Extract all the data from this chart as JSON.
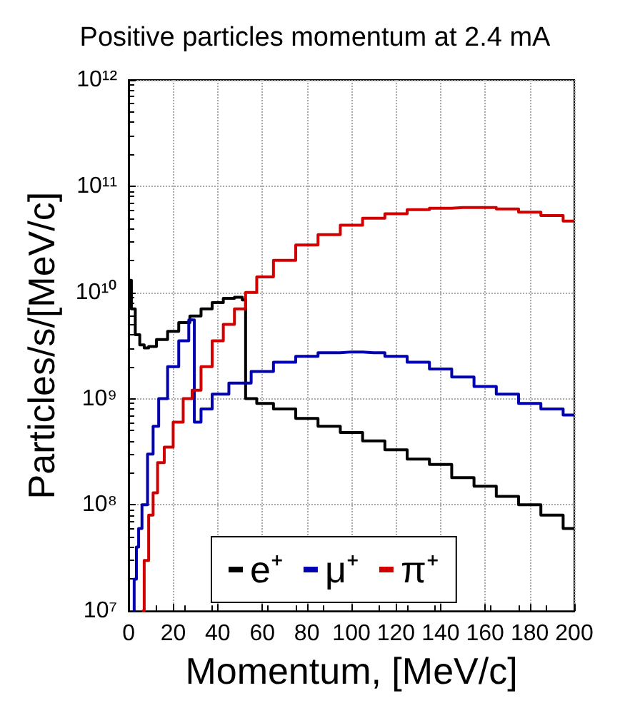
{
  "chart_data": {
    "type": "step",
    "title": "Positive particles momentum at 2.4 mA",
    "xlabel": "Momentum, [MeV/c]",
    "ylabel": "Particles/s/[MeV/c]",
    "xlim": [
      0,
      200
    ],
    "xticks": [
      0,
      20,
      40,
      60,
      80,
      100,
      120,
      140,
      160,
      180,
      200
    ],
    "ylim": [
      10000000,
      1000000000000
    ],
    "log": "y",
    "yticks": [
      {
        "value": 10000000,
        "label": "10⁷"
      },
      {
        "value": 100000000,
        "label": "10⁸"
      },
      {
        "value": 1000000000,
        "label": "10⁹"
      },
      {
        "value": 10000000000,
        "label": "10¹⁰"
      },
      {
        "value": 100000000000,
        "label": "10¹¹"
      },
      {
        "value": 1000000000000,
        "label": "10¹²"
      }
    ],
    "grid": true,
    "legend": "bottom",
    "line_style": "solid",
    "marker": "none",
    "series": [
      {
        "name": "e⁺",
        "color": "#000000",
        "x": [
          0.5,
          2,
          4,
          6,
          8,
          10,
          15,
          20,
          25,
          30,
          35,
          40,
          45,
          50,
          52,
          53,
          55,
          60,
          70,
          80,
          90,
          100,
          110,
          120,
          130,
          140,
          150,
          160,
          170,
          180,
          190,
          200
        ],
        "values": [
          13000000000,
          7000000000,
          4000000000,
          3200000000,
          3000000000,
          3100000000,
          3600000000,
          4300000000,
          5200000000,
          6000000000,
          7000000000,
          8000000000,
          8800000000,
          9000000000,
          8500000000,
          1000000000,
          1000000000,
          900000000,
          800000000,
          650000000,
          550000000,
          480000000,
          400000000,
          330000000,
          270000000,
          240000000,
          180000000,
          150000000,
          120000000,
          100000000,
          80000000,
          60000000
        ]
      },
      {
        "name": "μ⁺",
        "color": "#0000b0",
        "x": [
          2,
          3,
          4,
          5,
          7,
          10,
          12,
          15,
          20,
          25,
          29,
          30,
          35,
          40,
          50,
          60,
          70,
          80,
          90,
          100,
          110,
          120,
          130,
          140,
          150,
          160,
          170,
          180,
          190,
          200
        ],
        "values": [
          10000000,
          20000000,
          40000000,
          60000000,
          100000000,
          300000000,
          550000000,
          1000000000,
          2000000000,
          3500000000,
          5500000000,
          600000000,
          800000000,
          1100000000,
          1400000000,
          1800000000,
          2200000000,
          2500000000,
          2700000000,
          2750000000,
          2700000000,
          2500000000,
          2200000000,
          1900000000,
          1600000000,
          1300000000,
          1100000000,
          900000000,
          800000000,
          700000000
        ]
      },
      {
        "name": "π⁺",
        "color": "#d00000",
        "x": [
          6,
          8,
          10,
          12,
          14,
          18,
          22,
          27,
          30,
          35,
          40,
          45,
          50,
          55,
          60,
          70,
          80,
          90,
          100,
          110,
          120,
          130,
          140,
          150,
          160,
          170,
          180,
          190,
          200
        ],
        "values": [
          10000000,
          30000000,
          80000000,
          130000000,
          250000000,
          350000000,
          600000000,
          1000000000,
          1200000000,
          2000000000,
          3500000000,
          5000000000,
          7000000000,
          10000000000,
          14000000000,
          20000000000,
          28000000000,
          35000000000,
          43000000000,
          50000000000,
          55000000000,
          60000000000,
          62000000000,
          63000000000,
          63000000000,
          61000000000,
          57000000000,
          53000000000,
          47000000000
        ]
      }
    ]
  }
}
